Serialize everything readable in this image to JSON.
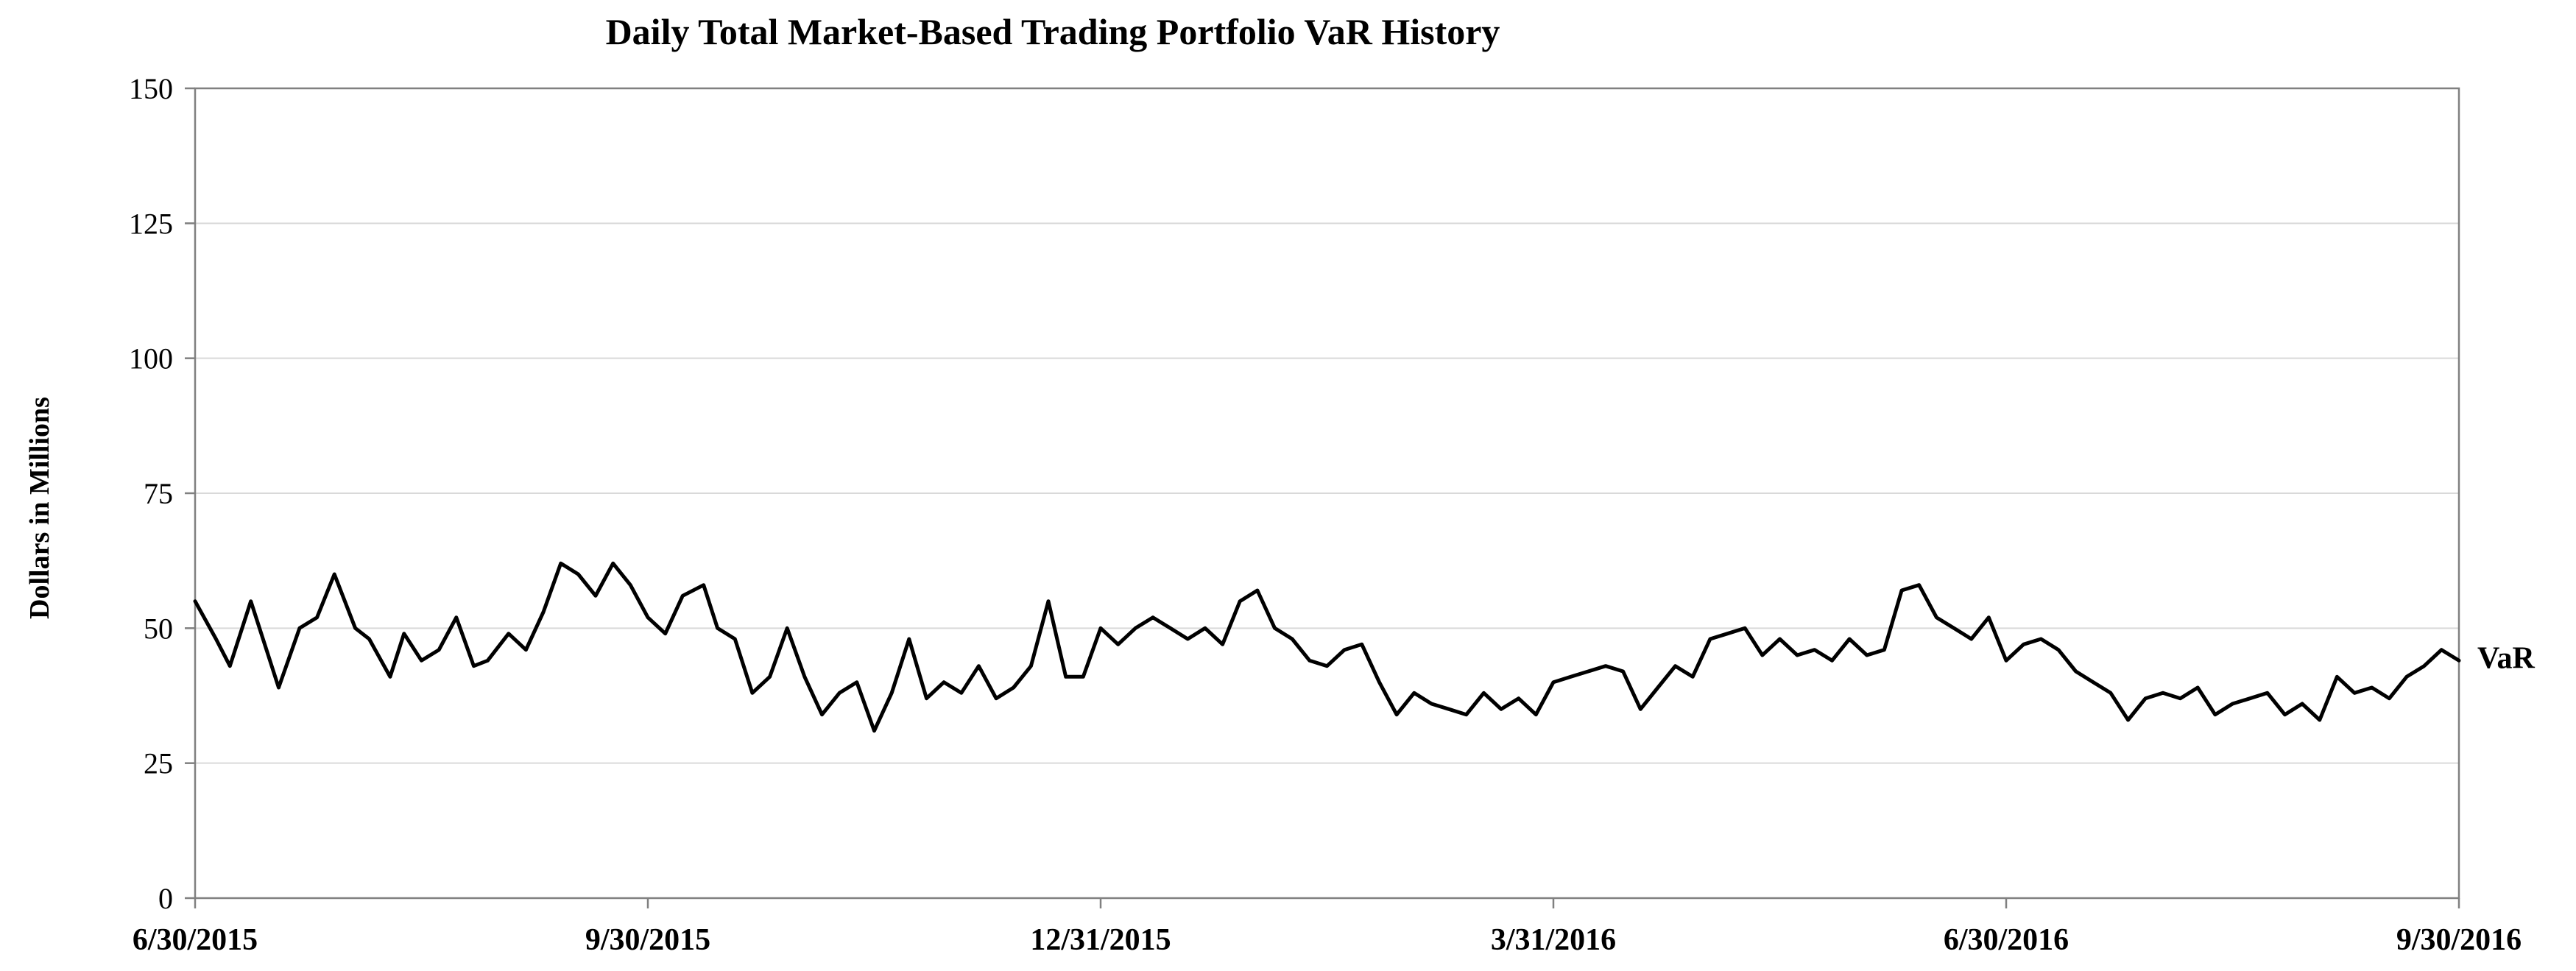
{
  "chart_data": {
    "type": "line",
    "title": "Daily Total Market-Based Trading Portfolio VaR History",
    "xlabel": "",
    "ylabel": "Dollars in Millions",
    "ylim": [
      0,
      150
    ],
    "yticks": [
      0,
      25,
      50,
      75,
      100,
      125,
      150
    ],
    "xlim": [
      0,
      65
    ],
    "xtick_positions": [
      0,
      13,
      26,
      39,
      52,
      65
    ],
    "xtick_labels": [
      "6/30/2015",
      "9/30/2015",
      "12/31/2015",
      "3/31/2016",
      "6/30/2016",
      "9/30/2016"
    ],
    "grid": true,
    "series": [
      {
        "name": "VaR",
        "label_text": "VaR",
        "color": "#000000",
        "x": [
          0,
          0.6,
          1.0,
          1.6,
          2.0,
          2.4,
          3.0,
          3.5,
          4.0,
          4.6,
          5.0,
          5.6,
          6.0,
          6.5,
          7.0,
          7.5,
          8.0,
          8.4,
          9.0,
          9.5,
          10.0,
          10.5,
          11.0,
          11.5,
          12.0,
          12.5,
          13.0,
          13.5,
          14.0,
          14.6,
          15.0,
          15.5,
          16.0,
          16.5,
          17.0,
          17.5,
          18.0,
          18.5,
          19.0,
          19.5,
          20.0,
          20.5,
          21.0,
          21.5,
          22.0,
          22.5,
          23.0,
          23.5,
          24.0,
          24.5,
          25.0,
          25.5,
          26.0,
          26.5,
          27.0,
          27.5,
          28.0,
          28.5,
          29.0,
          29.5,
          30.0,
          30.5,
          31.0,
          31.5,
          32.0,
          32.5,
          33.0,
          33.5,
          34.0,
          34.5,
          35.0,
          35.5,
          36.0,
          36.5,
          37.0,
          37.5,
          38.0,
          38.5,
          39.0,
          39.5,
          40.0,
          40.5,
          41.0,
          41.5,
          42.0,
          42.5,
          43.0,
          43.5,
          44.0,
          44.5,
          45.0,
          45.5,
          46.0,
          46.5,
          47.0,
          47.5,
          48.0,
          48.5,
          49.0,
          49.5,
          50.0,
          50.5,
          51.0,
          51.5,
          52.0,
          52.5,
          53.0,
          53.5,
          54.0,
          54.5,
          55.0,
          55.5,
          56.0,
          56.5,
          57.0,
          57.5,
          58.0,
          58.5,
          59.0,
          59.5,
          60.0,
          60.5,
          61.0,
          61.5,
          62.0,
          62.5,
          63.0,
          63.5,
          64.0,
          64.5,
          65.0
        ],
        "values": [
          55,
          48,
          43,
          55,
          47,
          39,
          50,
          52,
          60,
          50,
          48,
          41,
          49,
          44,
          46,
          52,
          43,
          44,
          49,
          46,
          53,
          62,
          60,
          56,
          62,
          58,
          52,
          49,
          56,
          58,
          50,
          48,
          38,
          41,
          50,
          41,
          34,
          38,
          40,
          31,
          38,
          48,
          37,
          40,
          38,
          43,
          37,
          39,
          43,
          55,
          41,
          41,
          50,
          47,
          50,
          52,
          50,
          48,
          50,
          47,
          55,
          57,
          50,
          48,
          44,
          43,
          46,
          47,
          40,
          34,
          38,
          36,
          35,
          34,
          38,
          35,
          37,
          34,
          40,
          41,
          42,
          43,
          42,
          35,
          39,
          43,
          41,
          48,
          49,
          50,
          45,
          48,
          45,
          46,
          44,
          48,
          45,
          46,
          57,
          58,
          52,
          50,
          48,
          52,
          44,
          47,
          48,
          46,
          42,
          40,
          38,
          33,
          37,
          38,
          37,
          39,
          34,
          36,
          37,
          38,
          34,
          36,
          33,
          41,
          38,
          39,
          37,
          41,
          43,
          46,
          44
        ]
      }
    ]
  }
}
